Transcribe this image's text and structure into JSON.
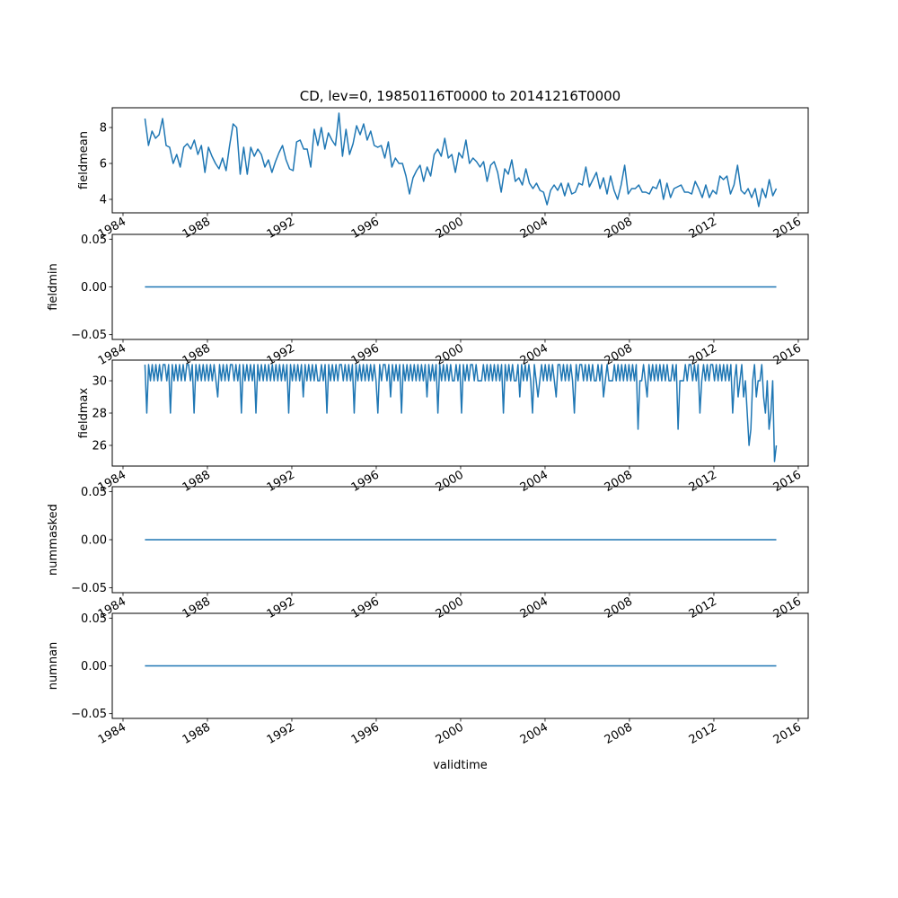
{
  "chart_data": {
    "type": "line",
    "title": "CD, lev=0, 19850116T0000 to 20141216T0000",
    "xlabel": "validtime",
    "xlim": [
      1983.49,
      2016.47
    ],
    "x_start": 1985.04,
    "x_end": 2014.96,
    "xticks": [
      1984,
      1988,
      1992,
      1996,
      2000,
      2004,
      2008,
      2012,
      2016
    ],
    "xtick_labels": [
      "1984",
      "1988",
      "1992",
      "1996",
      "2000",
      "2004",
      "2008",
      "2012",
      "2016"
    ],
    "line_color": "#1f77b4",
    "panels": [
      {
        "ylabel": "fieldmean",
        "ylim": [
          3.25,
          9.1
        ],
        "yticks": [
          4,
          6,
          8
        ],
        "ytick_labels": [
          "4",
          "6",
          "8"
        ],
        "sampling": "bi-monthly approximation",
        "values": [
          8.5,
          7.0,
          7.8,
          7.4,
          7.6,
          8.5,
          7.0,
          6.9,
          6.0,
          6.5,
          5.8,
          6.9,
          7.1,
          6.8,
          7.3,
          6.5,
          7.0,
          5.5,
          6.9,
          6.4,
          6.0,
          5.7,
          6.3,
          5.6,
          7.0,
          8.2,
          8.0,
          5.4,
          6.9,
          5.4,
          6.9,
          6.4,
          6.8,
          6.5,
          5.8,
          6.2,
          5.5,
          6.1,
          6.6,
          7.0,
          6.2,
          5.7,
          5.6,
          7.2,
          7.3,
          6.8,
          6.8,
          5.8,
          7.9,
          7.0,
          8.0,
          6.8,
          7.7,
          7.3,
          7.0,
          8.8,
          6.4,
          7.9,
          6.5,
          7.1,
          8.1,
          7.6,
          8.2,
          7.3,
          7.8,
          7.0,
          6.9,
          7.0,
          6.3,
          7.2,
          5.8,
          6.3,
          6.0,
          6.0,
          5.3,
          4.3,
          5.2,
          5.6,
          5.9,
          5.0,
          5.8,
          5.3,
          6.5,
          6.8,
          6.4,
          7.4,
          6.3,
          6.5,
          5.5,
          6.6,
          6.3,
          7.3,
          6.0,
          6.3,
          6.1,
          5.8,
          6.1,
          5.0,
          5.9,
          6.1,
          5.5,
          4.4,
          5.7,
          5.4,
          6.2,
          5.0,
          5.2,
          4.8,
          5.7,
          4.9,
          4.6,
          4.9,
          4.5,
          4.4,
          3.7,
          4.5,
          4.8,
          4.5,
          4.9,
          4.2,
          4.9,
          4.3,
          4.4,
          4.9,
          4.8,
          5.8,
          4.7,
          5.1,
          5.5,
          4.6,
          5.2,
          4.3,
          5.3,
          4.5,
          4.0,
          4.8,
          5.9,
          4.3,
          4.6,
          4.6,
          4.8,
          4.4,
          4.4,
          4.3,
          4.7,
          4.6,
          5.1,
          4.0,
          4.9,
          4.1,
          4.6,
          4.7,
          4.8,
          4.4,
          4.4,
          4.3,
          5.0,
          4.6,
          4.1,
          4.8,
          4.1,
          4.5,
          4.3,
          5.3,
          5.1,
          5.3,
          4.3,
          4.8,
          5.9,
          4.5,
          4.3,
          4.6,
          4.1,
          4.6,
          3.6,
          4.6,
          4.1,
          5.1,
          4.2,
          4.6
        ]
      },
      {
        "ylabel": "fieldmin",
        "ylim": [
          -0.055,
          0.055
        ],
        "yticks": [
          -0.05,
          0.0,
          0.05
        ],
        "ytick_labels": [
          "−0.05",
          "0.00",
          "0.05"
        ],
        "sampling": "constant",
        "values": [
          0,
          0
        ]
      },
      {
        "ylabel": "fieldmax",
        "ylim": [
          24.72,
          31.28
        ],
        "yticks": [
          26,
          28,
          30
        ],
        "ytick_labels": [
          "26",
          "28",
          "30"
        ],
        "sampling": "monthly approximation",
        "values": [
          31,
          28,
          31,
          30,
          31,
          30,
          31,
          30,
          31,
          30,
          31,
          31,
          30,
          31,
          28,
          31,
          30,
          31,
          30,
          31,
          30,
          31,
          30,
          31,
          31,
          30,
          31,
          28,
          31,
          30,
          31,
          30,
          31,
          30,
          31,
          30,
          31,
          30,
          31,
          30,
          29,
          31,
          30,
          31,
          30,
          31,
          30,
          31,
          31,
          30,
          31,
          30,
          31,
          28,
          31,
          30,
          31,
          30,
          31,
          30,
          31,
          28,
          31,
          30,
          31,
          30,
          31,
          30,
          31,
          30,
          31,
          30,
          31,
          30,
          31,
          30,
          31,
          30,
          31,
          28,
          31,
          30,
          31,
          30,
          31,
          30,
          31,
          29,
          31,
          30,
          31,
          30,
          31,
          30,
          31,
          30,
          30,
          31,
          30,
          31,
          28,
          31,
          30,
          31,
          30,
          31,
          30,
          31,
          31,
          30,
          31,
          30,
          31,
          30,
          31,
          28,
          31,
          30,
          31,
          30,
          31,
          30,
          31,
          30,
          31,
          30,
          31,
          30,
          28,
          31,
          30,
          31,
          31,
          30,
          31,
          29,
          31,
          30,
          31,
          30,
          31,
          28,
          31,
          30,
          31,
          30,
          31,
          30,
          31,
          30,
          31,
          30,
          31,
          30,
          31,
          29,
          31,
          30,
          31,
          30,
          31,
          28,
          31,
          30,
          31,
          30,
          31,
          30,
          31,
          30,
          30,
          31,
          30,
          31,
          28,
          31,
          30,
          31,
          30,
          31,
          31,
          30,
          31,
          30,
          30,
          30,
          31,
          30,
          31,
          30,
          31,
          30,
          31,
          30,
          31,
          30,
          31,
          28,
          31,
          30,
          31,
          30,
          31,
          30,
          30,
          31,
          29,
          31,
          30,
          31,
          30,
          31,
          30,
          28,
          31,
          30,
          29,
          30,
          31,
          30,
          31,
          30,
          31,
          30,
          31,
          30,
          29,
          31,
          31,
          30,
          31,
          30,
          31,
          30,
          31,
          30,
          28,
          31,
          30,
          31,
          31,
          30,
          31,
          30,
          31,
          30,
          31,
          30,
          30,
          31,
          30,
          31,
          29,
          30,
          31,
          30,
          30,
          30,
          31,
          30,
          31,
          30,
          31,
          30,
          31,
          30,
          31,
          30,
          31,
          30,
          31,
          27,
          30,
          30,
          31,
          30,
          29,
          31,
          30,
          31,
          30,
          31,
          30,
          31,
          30,
          31,
          30,
          31,
          30,
          30,
          31,
          30,
          31,
          27,
          30,
          30,
          30,
          31,
          30,
          31,
          31,
          30,
          31,
          30,
          31,
          28,
          30,
          31,
          30,
          31,
          30,
          31,
          31,
          30,
          31,
          30,
          31,
          30,
          31,
          30,
          31,
          30,
          31,
          28,
          30,
          31,
          29,
          30,
          31,
          29,
          30,
          28,
          26,
          27,
          30,
          31,
          29,
          30,
          30,
          31,
          29,
          28,
          30,
          27,
          28,
          30,
          25,
          26
        ]
      },
      {
        "ylabel": "nummasked",
        "ylim": [
          -0.055,
          0.055
        ],
        "yticks": [
          -0.05,
          0.0,
          0.05
        ],
        "ytick_labels": [
          "−0.05",
          "0.00",
          "0.05"
        ],
        "sampling": "constant",
        "values": [
          0,
          0
        ]
      },
      {
        "ylabel": "numnan",
        "ylim": [
          -0.055,
          0.055
        ],
        "yticks": [
          -0.05,
          0.0,
          0.05
        ],
        "ytick_labels": [
          "−0.05",
          "0.00",
          "0.05"
        ],
        "sampling": "constant",
        "values": [
          0,
          0
        ]
      }
    ]
  }
}
